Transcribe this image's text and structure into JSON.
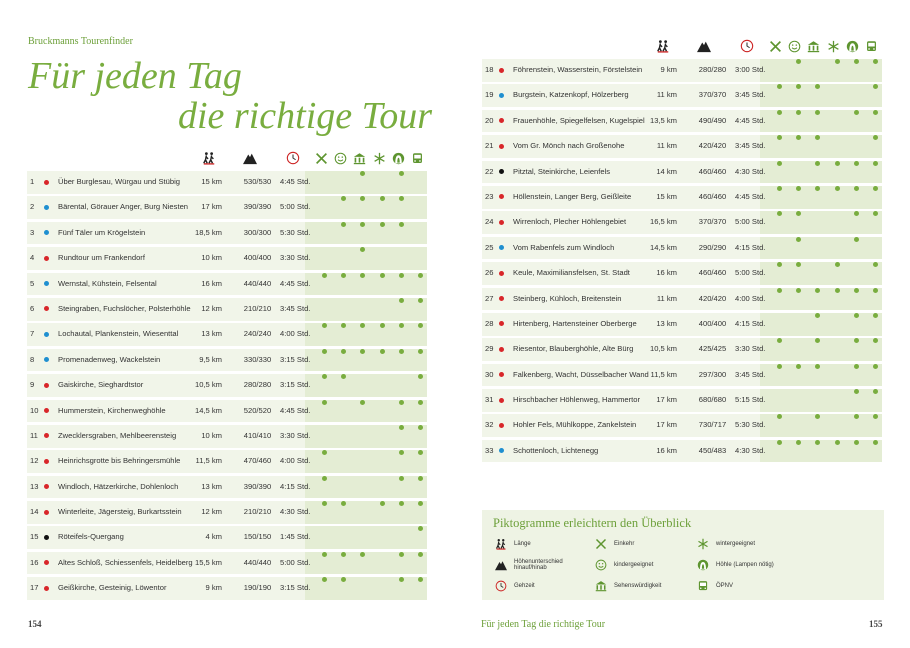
{
  "left_page": {
    "series": "Bruckmanns Tourenfinder",
    "title_line1": "Für jeden Tag",
    "title_line2": "die richtige Tour",
    "page_number": "154"
  },
  "right_page": {
    "footer_title": "Für jeden Tag die richtige Tour",
    "page_number": "155"
  },
  "header_icons": [
    "hiker-icon",
    "mountain-icon",
    "clock-icon",
    "cutlery-icon",
    "smiley-icon",
    "museum-icon",
    "snowflake-icon",
    "cave-icon",
    "bus-icon"
  ],
  "colors": {
    "green": "#79ad3f",
    "red": "#d8262a",
    "blue": "#1f8fd0",
    "black": "#111111",
    "row_bg": "#f1f5e9",
    "shade_bg": "#e4edd4"
  },
  "tours_left": [
    {
      "num": "1",
      "color": "red",
      "name": "Über Burglesau, Würgau und Stübig",
      "length": "15 km",
      "altitude": "530/530",
      "time": "4:45 Std.",
      "features": [
        0,
        0,
        1,
        0,
        1,
        0
      ]
    },
    {
      "num": "2",
      "color": "blue",
      "name": "Bärental, Görauer Anger, Burg Niesten",
      "length": "17 km",
      "altitude": "390/390",
      "time": "5:00 Std.",
      "features": [
        0,
        1,
        1,
        1,
        1,
        0
      ]
    },
    {
      "num": "3",
      "color": "blue",
      "name": "Fünf Täler um Krögelstein",
      "length": "18,5 km",
      "altitude": "300/300",
      "time": "5:30 Std.",
      "features": [
        0,
        1,
        1,
        1,
        1,
        0
      ]
    },
    {
      "num": "4",
      "color": "red",
      "name": "Rundtour um Frankendorf",
      "length": "10 km",
      "altitude": "400/400",
      "time": "3:30 Std.",
      "features": [
        0,
        0,
        1,
        0,
        0,
        0
      ]
    },
    {
      "num": "5",
      "color": "blue",
      "name": "Wernstal, Kühstein, Felsental",
      "length": "16 km",
      "altitude": "440/440",
      "time": "4:45 Std.",
      "features": [
        1,
        1,
        1,
        1,
        1,
        1
      ]
    },
    {
      "num": "6",
      "color": "red",
      "name": "Steingraben, Fuchslöcher, Polsterhöhle",
      "length": "12 km",
      "altitude": "210/210",
      "time": "3:45 Std.",
      "features": [
        0,
        0,
        0,
        0,
        1,
        1
      ]
    },
    {
      "num": "7",
      "color": "blue",
      "name": "Lochautal, Plankenstein, Wiesenttal",
      "length": "13 km",
      "altitude": "240/240",
      "time": "4:00 Std.",
      "features": [
        1,
        1,
        1,
        1,
        1,
        1
      ]
    },
    {
      "num": "8",
      "color": "blue",
      "name": "Promenadenweg, Wackelstein",
      "length": "9,5 km",
      "altitude": "330/330",
      "time": "3:15 Std.",
      "features": [
        1,
        1,
        1,
        1,
        1,
        1
      ]
    },
    {
      "num": "9",
      "color": "red",
      "name": "Gaiskirche, Sieghardtstor",
      "length": "10,5 km",
      "altitude": "280/280",
      "time": "3:15 Std.",
      "features": [
        1,
        1,
        0,
        0,
        0,
        1
      ]
    },
    {
      "num": "10",
      "color": "red",
      "name": "Hummerstein, Kirchenweghöhle",
      "length": "14,5 km",
      "altitude": "520/520",
      "time": "4:45 Std.",
      "features": [
        1,
        0,
        1,
        0,
        1,
        1
      ]
    },
    {
      "num": "11",
      "color": "red",
      "name": "Zwecklersgraben, Mehlbeerensteig",
      "length": "10 km",
      "altitude": "410/410",
      "time": "3:30 Std.",
      "features": [
        0,
        0,
        0,
        0,
        1,
        1
      ]
    },
    {
      "num": "12",
      "color": "red",
      "name": "Heinrichsgrotte bis Behringersmühle",
      "length": "11,5 km",
      "altitude": "470/460",
      "time": "4:00 Std.",
      "features": [
        1,
        0,
        0,
        0,
        1,
        1
      ]
    },
    {
      "num": "13",
      "color": "red",
      "name": "Windloch, Hätzerkirche, Dohlenloch",
      "length": "13 km",
      "altitude": "390/390",
      "time": "4:15 Std.",
      "features": [
        1,
        0,
        0,
        0,
        1,
        1
      ]
    },
    {
      "num": "14",
      "color": "red",
      "name": "Winterleite, Jägersteig, Burkartsstein",
      "length": "12 km",
      "altitude": "210/210",
      "time": "4:30 Std.",
      "features": [
        1,
        1,
        0,
        1,
        1,
        1
      ]
    },
    {
      "num": "15",
      "color": "black",
      "name": "Röteifels-Quergang",
      "length": "4 km",
      "altitude": "150/150",
      "time": "1:45 Std.",
      "features": [
        0,
        0,
        0,
        0,
        0,
        1
      ]
    },
    {
      "num": "16",
      "color": "red",
      "name": "Altes Schloß, Schiessenfels, Heidelberg",
      "length": "15,5 km",
      "altitude": "440/440",
      "time": "5:00 Std.",
      "features": [
        1,
        1,
        1,
        0,
        1,
        1
      ]
    },
    {
      "num": "17",
      "color": "red",
      "name": "Geißkirche, Gesteinig, Löwentor",
      "length": "9 km",
      "altitude": "190/190",
      "time": "3:15 Std.",
      "features": [
        1,
        1,
        0,
        0,
        1,
        1
      ]
    }
  ],
  "tours_right": [
    {
      "num": "18",
      "color": "red",
      "name": "Föhrenstein, Wasserstein, Förstelstein",
      "length": "9 km",
      "altitude": "280/280",
      "time": "3:00 Std.",
      "features": [
        0,
        1,
        0,
        1,
        1,
        1
      ]
    },
    {
      "num": "19",
      "color": "blue",
      "name": "Burgstein, Katzenkopf, Hölzerberg",
      "length": "11 km",
      "altitude": "370/370",
      "time": "3:45 Std.",
      "features": [
        1,
        1,
        1,
        0,
        0,
        1
      ]
    },
    {
      "num": "20",
      "color": "red",
      "name": "Frauenhöhle, Spiegelfelsen, Kugelspiel",
      "length": "13,5 km",
      "altitude": "490/490",
      "time": "4:45 Std.",
      "features": [
        1,
        1,
        1,
        0,
        1,
        1
      ]
    },
    {
      "num": "21",
      "color": "red",
      "name": "Vom Gr. Mönch nach Großenohe",
      "length": "11 km",
      "altitude": "420/420",
      "time": "3:45 Std.",
      "features": [
        1,
        1,
        1,
        0,
        0,
        1
      ]
    },
    {
      "num": "22",
      "color": "black",
      "name": "Pitztal, Steinkirche, Leienfels",
      "length": "14 km",
      "altitude": "460/460",
      "time": "4:30 Std.",
      "features": [
        1,
        0,
        1,
        1,
        1,
        1
      ]
    },
    {
      "num": "23",
      "color": "red",
      "name": "Höllenstein, Langer Berg, Geißleite",
      "length": "15 km",
      "altitude": "460/460",
      "time": "4:45 Std.",
      "features": [
        1,
        1,
        1,
        1,
        1,
        1
      ]
    },
    {
      "num": "24",
      "color": "red",
      "name": "Wirrenloch, Plecher Höhlengebiet",
      "length": "16,5 km",
      "altitude": "370/370",
      "time": "5:00 Std.",
      "features": [
        1,
        1,
        0,
        0,
        1,
        1
      ]
    },
    {
      "num": "25",
      "color": "blue",
      "name": "Vom Rabenfels zum Windloch",
      "length": "14,5 km",
      "altitude": "290/290",
      "time": "4:15 Std.",
      "features": [
        0,
        1,
        0,
        0,
        1,
        0
      ]
    },
    {
      "num": "26",
      "color": "red",
      "name": "Keule, Maximiliansfelsen, St. Stadt",
      "length": "16 km",
      "altitude": "460/460",
      "time": "5:00 Std.",
      "features": [
        1,
        1,
        0,
        1,
        0,
        1
      ]
    },
    {
      "num": "27",
      "color": "red",
      "name": "Steinberg, Kühloch, Breitenstein",
      "length": "11 km",
      "altitude": "420/420",
      "time": "4:00 Std.",
      "features": [
        1,
        1,
        1,
        1,
        1,
        1
      ]
    },
    {
      "num": "28",
      "color": "red",
      "name": "Hirtenberg, Hartensteiner Oberberge",
      "length": "13 km",
      "altitude": "400/400",
      "time": "4:15 Std.",
      "features": [
        0,
        0,
        1,
        0,
        1,
        1
      ]
    },
    {
      "num": "29",
      "color": "red",
      "name": "Riesentor, Blauberghöhle, Alte Bürg",
      "length": "10,5 km",
      "altitude": "425/425",
      "time": "3:30 Std.",
      "features": [
        1,
        0,
        1,
        0,
        1,
        1
      ]
    },
    {
      "num": "30",
      "color": "red",
      "name": "Falkenberg, Wacht, Düsselbacher Wand",
      "length": "11,5 km",
      "altitude": "297/300",
      "time": "3:45 Std.",
      "features": [
        1,
        1,
        1,
        0,
        1,
        1
      ]
    },
    {
      "num": "31",
      "color": "red",
      "name": "Hirschbacher Höhlenweg, Hammertor",
      "length": "17 km",
      "altitude": "680/680",
      "time": "5:15 Std.",
      "features": [
        0,
        0,
        0,
        0,
        1,
        1
      ]
    },
    {
      "num": "32",
      "color": "red",
      "name": "Hohler Fels, Mühlkoppe, Zankelstein",
      "length": "17 km",
      "altitude": "730/717",
      "time": "5:30 Std.",
      "features": [
        1,
        0,
        1,
        0,
        1,
        1
      ]
    },
    {
      "num": "33",
      "color": "blue",
      "name": "Schottenloch, Lichtenegg",
      "length": "16 km",
      "altitude": "450/483",
      "time": "4:30 Std.",
      "features": [
        1,
        1,
        1,
        1,
        1,
        1
      ]
    }
  ],
  "legend": {
    "title": "Piktogramme erleichtern den Überblick",
    "items": [
      {
        "icon": "hiker-icon",
        "label": "Länge"
      },
      {
        "icon": "cutlery-icon",
        "label": "Einkehr"
      },
      {
        "icon": "snowflake-icon",
        "label": "wintergeeignet"
      },
      {
        "icon": "mountain-icon",
        "label": "Höhenunterschied hinauf/hinab"
      },
      {
        "icon": "smiley-icon",
        "label": "kindergeeignet"
      },
      {
        "icon": "cave-icon",
        "label": "Höhle (Lampen nötig)"
      },
      {
        "icon": "clock-icon",
        "label": "Gehzeit"
      },
      {
        "icon": "museum-icon",
        "label": "Sehenswürdigkeit"
      },
      {
        "icon": "bus-icon",
        "label": "ÖPNV"
      }
    ]
  }
}
